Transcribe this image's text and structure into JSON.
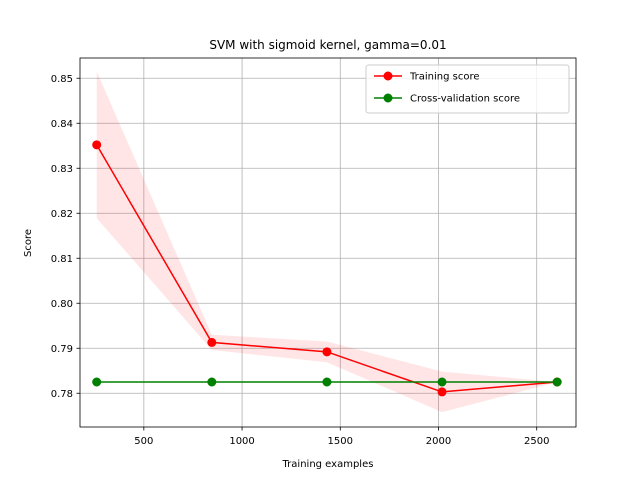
{
  "chart_data": {
    "type": "line",
    "title": "SVM with sigmoid kernel, gamma=0.01",
    "xlabel": "Training examples",
    "ylabel": "Score",
    "xlim": [
      175,
      2700
    ],
    "ylim": [
      0.7725,
      0.8545
    ],
    "grid": true,
    "legend_position": "top-right",
    "x": [
      260,
      846,
      1432,
      2018,
      2604
    ],
    "x_ticks": [
      {
        "value": 500,
        "label": "500"
      },
      {
        "value": 1000,
        "label": "1000"
      },
      {
        "value": 1500,
        "label": "1500"
      },
      {
        "value": 2000,
        "label": "2000"
      },
      {
        "value": 2500,
        "label": "2500"
      }
    ],
    "y_ticks": [
      {
        "value": 0.78,
        "label": "0.78"
      },
      {
        "value": 0.79,
        "label": "0.79"
      },
      {
        "value": 0.8,
        "label": "0.80"
      },
      {
        "value": 0.81,
        "label": "0.81"
      },
      {
        "value": 0.82,
        "label": "0.82"
      },
      {
        "value": 0.83,
        "label": "0.83"
      },
      {
        "value": 0.84,
        "label": "0.84"
      },
      {
        "value": 0.85,
        "label": "0.85"
      }
    ],
    "series": [
      {
        "name": "Training score",
        "color": "#ff0000",
        "band_color": "#ff0000",
        "values": [
          0.8352,
          0.7913,
          0.7892,
          0.7803,
          0.7825
        ],
        "upper": [
          0.8515,
          0.793,
          0.7915,
          0.7848,
          0.7825
        ],
        "lower": [
          0.8189,
          0.7896,
          0.7869,
          0.7758,
          0.7825
        ]
      },
      {
        "name": "Cross-validation score",
        "color": "#008000",
        "values": [
          0.7825,
          0.7825,
          0.7825,
          0.7825,
          0.7825
        ]
      }
    ]
  }
}
